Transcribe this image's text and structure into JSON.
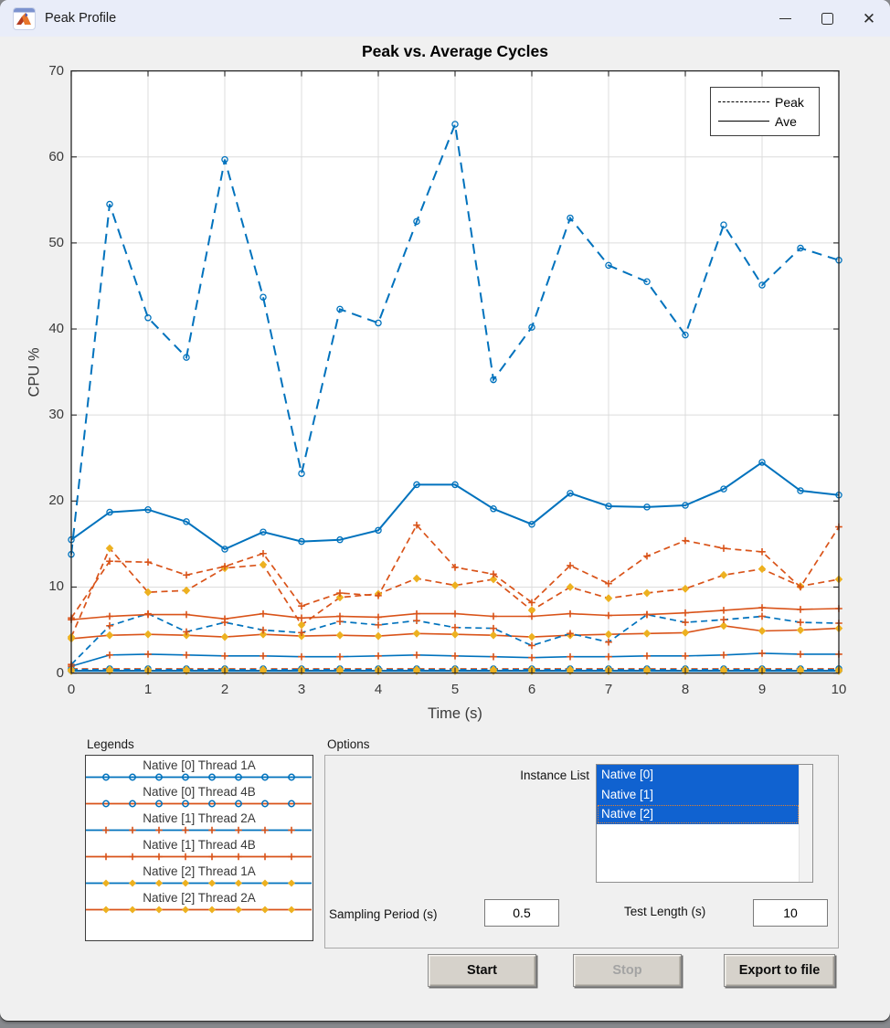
{
  "window": {
    "title": "Peak Profile",
    "controls": [
      {
        "name": "minimize",
        "glyph": "min"
      },
      {
        "name": "maximize",
        "glyph": "max"
      },
      {
        "name": "close",
        "glyph": "close"
      }
    ]
  },
  "chart": {
    "title": "Peak vs. Average Cycles",
    "xlabel": "Time (s)",
    "ylabel": "CPU %",
    "x_ticks": [
      0,
      1,
      2,
      3,
      4,
      5,
      6,
      7,
      8,
      9,
      10
    ],
    "y_ticks": [
      0,
      10,
      20,
      30,
      40,
      50,
      60,
      70
    ],
    "legend": [
      {
        "label": "Peak",
        "style": "dashed"
      },
      {
        "label": "Ave",
        "style": "solid"
      }
    ]
  },
  "chart_data": {
    "type": "line",
    "title": "Peak vs. Average Cycles",
    "xlabel": "Time (s)",
    "ylabel": "CPU %",
    "xlim": [
      0,
      10
    ],
    "ylim": [
      0,
      70
    ],
    "grid": true,
    "legend_position": "top-right",
    "x": [
      0,
      0.5,
      1,
      1.5,
      2,
      2.5,
      3,
      3.5,
      4,
      4.5,
      5,
      5.5,
      6,
      6.5,
      7,
      7.5,
      8,
      8.5,
      9,
      9.5,
      10
    ],
    "series": [
      {
        "id": "n0t4b_peak",
        "name": "Native [0] Thread 4B Peak",
        "style": "dashed",
        "line_color": "#D95319",
        "marker": "circle",
        "marker_color": "#0072BD",
        "width": 1.6,
        "values": [
          0.5,
          0.5,
          0.5,
          0.5,
          0.5,
          0.5,
          0.5,
          0.5,
          0.5,
          0.5,
          0.5,
          0.5,
          0.5,
          0.5,
          0.5,
          0.5,
          0.5,
          0.5,
          0.5,
          0.5,
          0.5
        ]
      },
      {
        "id": "n0t4b_ave",
        "name": "Native [0] Thread 4B Ave",
        "style": "solid",
        "line_color": "#D95319",
        "marker": "circle",
        "marker_color": "#0072BD",
        "width": 1.6,
        "values": [
          0.3,
          0.3,
          0.3,
          0.3,
          0.3,
          0.3,
          0.3,
          0.3,
          0.3,
          0.3,
          0.3,
          0.3,
          0.3,
          0.3,
          0.3,
          0.3,
          0.3,
          0.3,
          0.3,
          0.3,
          0.3
        ]
      },
      {
        "id": "n2t1a_peak",
        "name": "Native [2] Thread 1A Peak",
        "style": "dashed",
        "line_color": "#0072BD",
        "marker": "diamond",
        "marker_color": "#EDB120",
        "width": 1.6,
        "values": [
          0.4,
          0.4,
          0.4,
          0.4,
          0.4,
          0.4,
          0.4,
          0.4,
          0.4,
          0.4,
          0.4,
          0.4,
          0.4,
          0.4,
          0.4,
          0.4,
          0.4,
          0.4,
          0.4,
          0.4,
          0.4
        ]
      },
      {
        "id": "n2t1a_ave",
        "name": "Native [2] Thread 1A Ave",
        "style": "solid",
        "line_color": "#0072BD",
        "marker": "diamond",
        "marker_color": "#EDB120",
        "width": 2,
        "values": [
          0.25,
          0.25,
          0.25,
          0.25,
          0.25,
          0.25,
          0.25,
          0.25,
          0.25,
          0.25,
          0.25,
          0.25,
          0.25,
          0.25,
          0.25,
          0.25,
          0.25,
          0.25,
          0.25,
          0.25,
          0.25
        ]
      },
      {
        "id": "n2t2a_peak",
        "name": "Native [2] Thread 2A Peak",
        "style": "dashed",
        "line_color": "#D95319",
        "marker": "diamond",
        "marker_color": "#EDB120",
        "width": 1.7,
        "values": [
          4.2,
          14.5,
          9.4,
          9.6,
          12.2,
          12.6,
          5.6,
          8.8,
          9.2,
          11.0,
          10.2,
          10.9,
          7.3,
          10.0,
          8.7,
          9.3,
          9.8,
          11.4,
          12.1,
          10.1,
          10.9
        ]
      },
      {
        "id": "n2t2a_ave",
        "name": "Native [2] Thread 2A Ave",
        "style": "solid",
        "line_color": "#D95319",
        "marker": "diamond",
        "marker_color": "#EDB120",
        "width": 1.6,
        "values": [
          4.0,
          4.4,
          4.5,
          4.4,
          4.2,
          4.5,
          4.3,
          4.4,
          4.3,
          4.6,
          4.5,
          4.4,
          4.2,
          4.4,
          4.5,
          4.6,
          4.7,
          5.5,
          4.9,
          5.0,
          5.2
        ]
      },
      {
        "id": "n1t2a_peak",
        "name": "Native [1] Thread 2A Peak",
        "style": "dashed",
        "line_color": "#0072BD",
        "marker": "plus",
        "marker_color": "#D95319",
        "width": 1.7,
        "values": [
          1.0,
          5.5,
          6.9,
          4.8,
          5.9,
          5.0,
          4.7,
          6.0,
          5.6,
          6.1,
          5.3,
          5.2,
          3.2,
          4.6,
          3.6,
          6.8,
          5.9,
          6.2,
          6.6,
          5.9,
          5.8
        ]
      },
      {
        "id": "n1t2a_ave",
        "name": "Native [1] Thread 2A Ave",
        "style": "solid",
        "line_color": "#0072BD",
        "marker": "plus",
        "marker_color": "#D95319",
        "width": 1.6,
        "values": [
          0.8,
          2.1,
          2.2,
          2.1,
          2.0,
          2.0,
          1.9,
          1.9,
          2.0,
          2.1,
          2.0,
          1.9,
          1.8,
          1.9,
          1.9,
          2.0,
          2.0,
          2.1,
          2.3,
          2.2,
          2.2
        ]
      },
      {
        "id": "n1t4b_peak",
        "name": "Native [1] Thread 4B Peak",
        "style": "dashed",
        "line_color": "#D95319",
        "marker": "plus",
        "marker_color": "#D95319",
        "width": 1.7,
        "values": [
          6.4,
          13.0,
          12.9,
          11.4,
          12.4,
          13.9,
          7.8,
          9.3,
          9.0,
          17.2,
          12.3,
          11.5,
          8.2,
          12.5,
          10.4,
          13.6,
          15.4,
          14.5,
          14.1,
          10.0,
          17.0
        ]
      },
      {
        "id": "n1t4b_ave",
        "name": "Native [1] Thread 4B Ave",
        "style": "solid",
        "line_color": "#D95319",
        "marker": "plus",
        "marker_color": "#D95319",
        "width": 1.6,
        "values": [
          6.2,
          6.6,
          6.8,
          6.8,
          6.3,
          6.9,
          6.4,
          6.6,
          6.5,
          6.9,
          6.9,
          6.6,
          6.6,
          6.9,
          6.7,
          6.8,
          7.0,
          7.3,
          7.6,
          7.4,
          7.5
        ]
      },
      {
        "id": "n0t1a_peak",
        "name": "Native [0] Thread 1A Peak",
        "style": "dashed",
        "line_color": "#0072BD",
        "marker": "circle",
        "marker_color": "#0072BD",
        "width": 2,
        "values": [
          13.8,
          54.5,
          41.3,
          36.7,
          59.7,
          43.7,
          23.2,
          42.3,
          40.7,
          52.5,
          63.8,
          34.1,
          40.2,
          52.9,
          47.4,
          45.5,
          39.3,
          52.1,
          45.1,
          49.4,
          48.0
        ]
      },
      {
        "id": "n0t1a_ave",
        "name": "Native [0] Thread 1A Ave",
        "style": "solid",
        "line_color": "#0072BD",
        "marker": "circle",
        "marker_color": "#0072BD",
        "width": 2,
        "values": [
          15.5,
          18.7,
          19.0,
          17.6,
          14.4,
          16.4,
          15.3,
          15.5,
          16.6,
          21.9,
          21.9,
          19.1,
          17.3,
          20.9,
          19.4,
          19.3,
          19.5,
          21.4,
          24.5,
          21.2,
          20.7
        ]
      }
    ]
  },
  "legends_panel": {
    "label": "Legends",
    "entries": [
      {
        "label": "Native [0] Thread 1A",
        "line_color": "#0072BD",
        "marker": "circle",
        "marker_color": "#0072BD"
      },
      {
        "label": "Native [0] Thread 4B",
        "line_color": "#D95319",
        "marker": "circle",
        "marker_color": "#0072BD"
      },
      {
        "label": "Native [1] Thread 2A",
        "line_color": "#0072BD",
        "marker": "plus",
        "marker_color": "#D95319"
      },
      {
        "label": "Native [1] Thread 4B",
        "line_color": "#D95319",
        "marker": "plus",
        "marker_color": "#D95319"
      },
      {
        "label": "Native [2] Thread 1A",
        "line_color": "#0072BD",
        "marker": "diamond",
        "marker_color": "#EDB120"
      },
      {
        "label": "Native [2] Thread 2A",
        "line_color": "#D95319",
        "marker": "diamond",
        "marker_color": "#EDB120"
      }
    ]
  },
  "options_panel": {
    "label": "Options",
    "instance_list_label": "Instance List",
    "instances": [
      {
        "label": "Native [0]",
        "selected": true,
        "focused": false
      },
      {
        "label": "Native [1]",
        "selected": true,
        "focused": false
      },
      {
        "label": "Native [2]",
        "selected": true,
        "focused": true
      }
    ],
    "sampling_label": "Sampling Period (s)",
    "sampling_value": "0.5",
    "test_label": "Test Length (s)",
    "test_value": "10"
  },
  "buttons": [
    {
      "label": "Start",
      "enabled": true
    },
    {
      "label": "Stop",
      "enabled": false
    },
    {
      "label": "Export to file",
      "enabled": true
    }
  ],
  "colors": {
    "matlab_blue": "#0072BD",
    "matlab_orange": "#D95319",
    "matlab_yellow": "#EDB120",
    "selection_blue": "#1062d0",
    "titlebar": "#e9edf9",
    "window_bg": "#f0f0f0",
    "grid": "#dcdcdc",
    "axis": "#262626"
  }
}
